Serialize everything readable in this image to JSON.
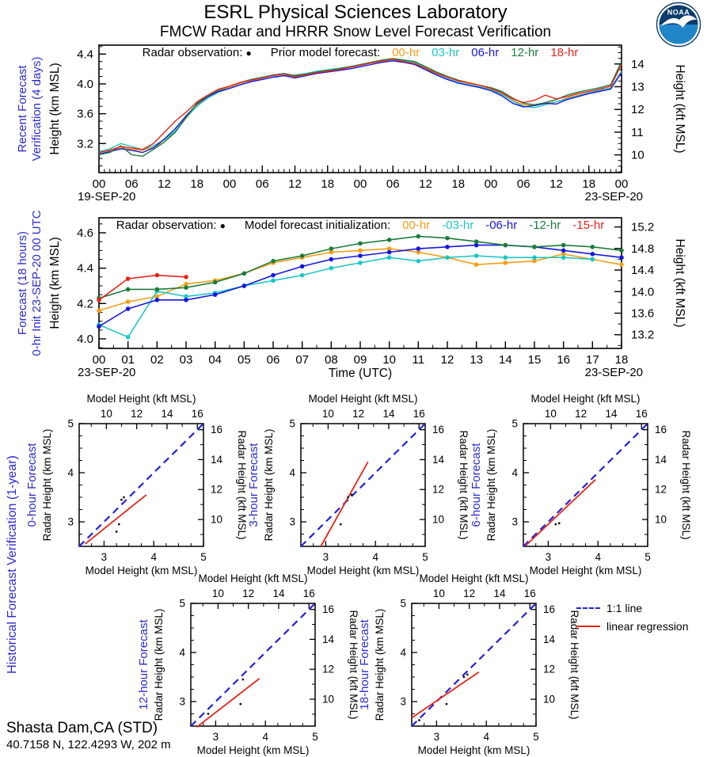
{
  "header": {
    "title": "ESRL Physical Sciences Laboratory",
    "subtitle": "FMCW Radar and HRRR Snow Level Forecast Verification",
    "noaa_logo_text": "NOAA"
  },
  "station": {
    "name": "Shasta Dam,CA (STD)",
    "location": "40.7158 N, 122.4293 W, 202 m"
  },
  "legend_bottom": {
    "one_to_one": "1:1 line",
    "regression": "linear regression"
  },
  "colors": {
    "series_orange": "#F59E16",
    "series_cyan": "#1EC6C6",
    "series_blue": "#1616E0",
    "series_green": "#1C7C3C",
    "series_red": "#E82418",
    "one_to_one_blue": "#2222DD",
    "regression_red": "#E82418",
    "panel_label_blue": "#2B2BCF",
    "logo_dark_blue": "#0C3C6E",
    "logo_light_blue": "#2186C8"
  },
  "chart_data": [
    {
      "id": "recent-verification",
      "type": "line",
      "panel_label_lines": [
        "Recent Forecast",
        "Verification (4 days)"
      ],
      "legend_prefix": "Radar observation:",
      "legend_marker": "●",
      "legend_label": "Prior model forecast:",
      "ylabel_left": "Height (km MSL)",
      "ylabel_right": "Height (kft MSL)",
      "xlabel": "",
      "date_left": "19-SEP-20",
      "date_right": "23-SEP-20",
      "x_start_hour": 0,
      "x_end_hour": 96,
      "x_step_hours": 2,
      "x_label_every_hours": 6,
      "x_tick_labels": [
        "00",
        "06",
        "12",
        "18",
        "00",
        "06",
        "12",
        "18",
        "00",
        "06",
        "12",
        "18",
        "00",
        "06",
        "12",
        "18",
        "00"
      ],
      "ylim_km": [
        2.81,
        4.52
      ],
      "yticks_km": [
        3.2,
        3.6,
        4.0,
        4.4
      ],
      "yticks_km_labels": [
        "3.2",
        "3.6",
        "4.0",
        "4.4"
      ],
      "yticks_kft": [
        10,
        11,
        12,
        13,
        14
      ],
      "yticks_kft_labels": [
        "10",
        "11",
        "12",
        "13",
        "14"
      ],
      "markers": false,
      "series": [
        {
          "name": "00-hr",
          "color_key": "series_orange",
          "values": [
            3.08,
            3.12,
            3.14,
            3.12,
            3.11,
            3.15,
            3.22,
            3.36,
            3.54,
            3.71,
            3.83,
            3.91,
            3.96,
            4.01,
            4.05,
            4.08,
            4.12,
            4.13,
            4.09,
            4.13,
            4.16,
            4.18,
            4.2,
            4.22,
            4.26,
            4.28,
            4.3,
            4.31,
            4.29,
            4.28,
            4.22,
            4.15,
            4.1,
            4.05,
            4.02,
            3.98,
            3.93,
            3.87,
            3.78,
            3.72,
            3.71,
            3.74,
            3.76,
            3.81,
            3.85,
            3.88,
            3.91,
            3.95,
            4.16
          ]
        },
        {
          "name": "03-hr",
          "color_key": "series_cyan",
          "values": [
            3.09,
            3.13,
            3.2,
            3.16,
            3.12,
            3.17,
            3.25,
            3.37,
            3.55,
            3.7,
            3.81,
            3.89,
            3.94,
            3.99,
            4.03,
            4.06,
            4.09,
            4.11,
            4.12,
            4.14,
            4.17,
            4.19,
            4.21,
            4.23,
            4.25,
            4.28,
            4.31,
            4.33,
            4.31,
            4.29,
            4.21,
            4.12,
            4.07,
            4.02,
            3.99,
            3.96,
            3.92,
            3.86,
            3.77,
            3.7,
            3.68,
            3.72,
            3.76,
            3.8,
            3.84,
            3.88,
            3.92,
            3.94,
            4.17
          ]
        },
        {
          "name": "06-hr",
          "color_key": "series_blue",
          "values": [
            3.06,
            3.09,
            3.13,
            3.11,
            3.08,
            3.14,
            3.26,
            3.4,
            3.57,
            3.73,
            3.83,
            3.9,
            3.94,
            3.99,
            4.03,
            4.06,
            4.09,
            4.11,
            4.08,
            4.11,
            4.14,
            4.16,
            4.18,
            4.2,
            4.23,
            4.26,
            4.29,
            4.31,
            4.29,
            4.26,
            4.19,
            4.12,
            4.06,
            4.01,
            3.98,
            3.95,
            3.91,
            3.84,
            3.74,
            3.69,
            3.71,
            3.74,
            3.73,
            3.79,
            3.83,
            3.87,
            3.9,
            3.93,
            4.15
          ]
        },
        {
          "name": "12-hr",
          "color_key": "series_green",
          "values": [
            3.05,
            3.08,
            3.17,
            3.05,
            3.03,
            3.12,
            3.22,
            3.35,
            3.55,
            3.74,
            3.84,
            3.92,
            3.97,
            4.02,
            4.06,
            4.09,
            4.12,
            4.14,
            4.11,
            4.13,
            4.16,
            4.18,
            4.2,
            4.23,
            4.26,
            4.29,
            4.32,
            4.34,
            4.32,
            4.3,
            4.23,
            4.16,
            4.1,
            4.05,
            4.01,
            3.98,
            3.95,
            3.9,
            3.81,
            3.74,
            3.72,
            3.75,
            3.79,
            3.85,
            3.89,
            3.92,
            3.95,
            3.99,
            4.3
          ]
        },
        {
          "name": "18-hr",
          "color_key": "series_red",
          "values": [
            3.08,
            3.11,
            3.16,
            3.14,
            3.12,
            3.2,
            3.35,
            3.5,
            3.62,
            3.76,
            3.85,
            3.93,
            3.97,
            4.02,
            4.05,
            4.08,
            4.11,
            4.13,
            4.1,
            4.12,
            4.15,
            4.17,
            4.19,
            4.22,
            4.25,
            4.28,
            4.31,
            4.33,
            4.3,
            4.27,
            4.21,
            4.14,
            4.09,
            4.04,
            4.01,
            3.98,
            3.94,
            3.88,
            3.8,
            3.75,
            3.78,
            3.85,
            3.8,
            3.83,
            3.87,
            3.9,
            3.93,
            3.97,
            4.26
          ]
        }
      ]
    },
    {
      "id": "forecast-18h",
      "type": "line",
      "panel_label_lines": [
        "Forecast (18 hours)",
        "0-hr Init 23-SEP-20 00 UTC"
      ],
      "legend_prefix": "Radar observation:",
      "legend_marker": "●",
      "legend_label": "Model forecast initialization:",
      "ylabel_left": "Height (km MSL)",
      "ylabel_right": "Height (kft MSL)",
      "xlabel": "Time (UTC)",
      "date_left": "23-SEP-20",
      "date_right": "23-SEP-20",
      "x_start_hour": 0,
      "x_end_hour": 18,
      "x_step_hours": 1,
      "x_label_every_hours": 1,
      "x_tick_labels": [
        "00",
        "01",
        "02",
        "03",
        "04",
        "05",
        "06",
        "07",
        "08",
        "09",
        "10",
        "11",
        "12",
        "13",
        "14",
        "15",
        "16",
        "17",
        "18"
      ],
      "ylim_km": [
        3.946,
        4.685
      ],
      "yticks_km": [
        4.0,
        4.2,
        4.4,
        4.6
      ],
      "yticks_km_labels": [
        "4.0",
        "4.2",
        "4.4",
        "4.6"
      ],
      "yticks_kft": [
        13.2,
        13.6,
        14.0,
        14.4,
        14.8,
        15.2
      ],
      "yticks_kft_labels": [
        "13.2",
        "13.6",
        "14.0",
        "14.4",
        "14.8",
        "15.2"
      ],
      "markers": true,
      "series": [
        {
          "name": "00-hr",
          "color_key": "series_orange",
          "values": [
            4.16,
            4.21,
            4.24,
            4.31,
            4.33,
            4.37,
            4.43,
            4.46,
            4.49,
            4.5,
            4.51,
            4.49,
            4.46,
            4.42,
            4.43,
            4.44,
            4.48,
            4.45,
            4.42
          ]
        },
        {
          "name": "-03-hr",
          "color_key": "series_cyan",
          "values": [
            4.08,
            4.01,
            4.27,
            4.24,
            4.26,
            4.3,
            4.33,
            4.36,
            4.4,
            4.43,
            4.46,
            4.44,
            4.46,
            4.47,
            4.46,
            4.46,
            4.46,
            4.45
          ]
        },
        {
          "name": "-06-hr",
          "color_key": "series_blue",
          "values": [
            4.07,
            4.17,
            4.22,
            4.22,
            4.25,
            4.3,
            4.36,
            4.41,
            4.45,
            4.47,
            4.49,
            4.51,
            4.52,
            4.53,
            4.53,
            4.52,
            4.5,
            4.48,
            4.46
          ]
        },
        {
          "name": "-12-hr",
          "color_key": "series_green",
          "values": [
            4.23,
            4.28,
            4.28,
            4.29,
            4.32,
            4.37,
            4.44,
            4.47,
            4.51,
            4.54,
            4.56,
            4.58,
            4.57,
            4.55,
            4.53,
            4.52,
            4.53,
            4.52,
            4.5
          ]
        },
        {
          "name": "-15-hr",
          "color_key": "series_red",
          "values": [
            4.22,
            4.34,
            4.36,
            4.35
          ]
        }
      ]
    },
    {
      "id": "scatter-0hr",
      "type": "scatter",
      "panel_label": "0-hour Forecast",
      "top_label": "Model Height (kft MSL)",
      "bottom_label": "Model Height (km MSL)",
      "left_label": "Radar Height (km MSL)",
      "right_label": "Radar Height (kft MSL)",
      "lim_km": [
        2.5,
        5.0
      ],
      "ticks_km": [
        3,
        4,
        5
      ],
      "ticks_km_labels": [
        "3",
        "4",
        "5"
      ],
      "ticks_kft": [
        10,
        12,
        14,
        16
      ],
      "ticks_kft_labels": [
        "10",
        "12",
        "14",
        "16"
      ],
      "regression": {
        "x1": 2.62,
        "y1": 2.55,
        "x2": 3.85,
        "y2": 3.55
      },
      "points": [
        [
          3.25,
          2.8
        ],
        [
          3.3,
          2.95
        ],
        [
          3.4,
          3.5
        ],
        [
          3.35,
          3.45
        ]
      ]
    },
    {
      "id": "scatter-3hr",
      "type": "scatter",
      "panel_label": "3-hour Forecast",
      "top_label": "Model Height (kft MSL)",
      "bottom_label": "Model Height (km MSL)",
      "left_label": "Radar Height (km MSL)",
      "right_label": "Radar Height (kft MSL)",
      "lim_km": [
        2.5,
        5.0
      ],
      "ticks_km": [
        3,
        4,
        5
      ],
      "ticks_km_labels": [
        "3",
        "4",
        "5"
      ],
      "ticks_kft": [
        10,
        12,
        14,
        16
      ],
      "ticks_kft_labels": [
        "10",
        "12",
        "14",
        "16"
      ],
      "regression": {
        "x1": 2.9,
        "y1": 2.5,
        "x2": 3.85,
        "y2": 4.22
      },
      "points": [
        [
          3.3,
          2.95
        ],
        [
          3.45,
          3.5
        ],
        [
          3.52,
          3.55
        ]
      ]
    },
    {
      "id": "scatter-6hr",
      "type": "scatter",
      "panel_label": "6-hour Forecast",
      "top_label": "Model Height (kft MSL)",
      "bottom_label": "Model Height (km MSL)",
      "left_label": "Radar Height (km MSL)",
      "right_label": "Radar Height (kft MSL)",
      "lim_km": [
        2.5,
        5.0
      ],
      "ticks_km": [
        3,
        4,
        5
      ],
      "ticks_km_labels": [
        "3",
        "4",
        "5"
      ],
      "ticks_kft": [
        10,
        12,
        14,
        16
      ],
      "ticks_kft_labels": [
        "10",
        "12",
        "14",
        "16"
      ],
      "regression": {
        "x1": 2.55,
        "y1": 2.52,
        "x2": 3.95,
        "y2": 3.86
      },
      "points": [
        [
          3.15,
          2.95
        ],
        [
          3.22,
          2.97
        ]
      ]
    },
    {
      "id": "scatter-12hr",
      "type": "scatter",
      "panel_label": "12-hour Forecast",
      "top_label": "Model Height (kft MSL)",
      "bottom_label": "Model Height (km MSL)",
      "left_label": "Radar Height (km MSL)",
      "right_label": "Radar Height (kft MSL)",
      "lim_km": [
        2.5,
        5.0
      ],
      "ticks_km": [
        3,
        4,
        5
      ],
      "ticks_km_labels": [
        "3",
        "4",
        "5"
      ],
      "ticks_kft": [
        10,
        12,
        14,
        16
      ],
      "ticks_kft_labels": [
        "10",
        "12",
        "14",
        "16"
      ],
      "regression": {
        "x1": 2.62,
        "y1": 2.48,
        "x2": 3.88,
        "y2": 3.47
      },
      "points": [
        [
          2.85,
          2.75
        ],
        [
          3.5,
          2.95
        ],
        [
          3.55,
          3.45
        ]
      ]
    },
    {
      "id": "scatter-18hr",
      "type": "scatter",
      "panel_label": "18-hour Forecast",
      "top_label": "Model Height (kft MSL)",
      "bottom_label": "Model Height (km MSL)",
      "left_label": "Radar Height (km MSL)",
      "right_label": "Radar Height (kft MSL)",
      "lim_km": [
        2.5,
        5.0
      ],
      "ticks_km": [
        3,
        4,
        5
      ],
      "ticks_km_labels": [
        "3",
        "4",
        "5"
      ],
      "ticks_kft": [
        10,
        12,
        14,
        16
      ],
      "ticks_kft_labels": [
        "10",
        "12",
        "14",
        "16"
      ],
      "regression": {
        "x1": 2.5,
        "y1": 2.67,
        "x2": 3.85,
        "y2": 3.6
      },
      "points": [
        [
          2.65,
          2.62
        ],
        [
          3.2,
          2.95
        ],
        [
          3.55,
          3.5
        ],
        [
          3.62,
          3.55
        ]
      ]
    }
  ],
  "section_label_historical": "Historical Forecast Verification (1-year)"
}
